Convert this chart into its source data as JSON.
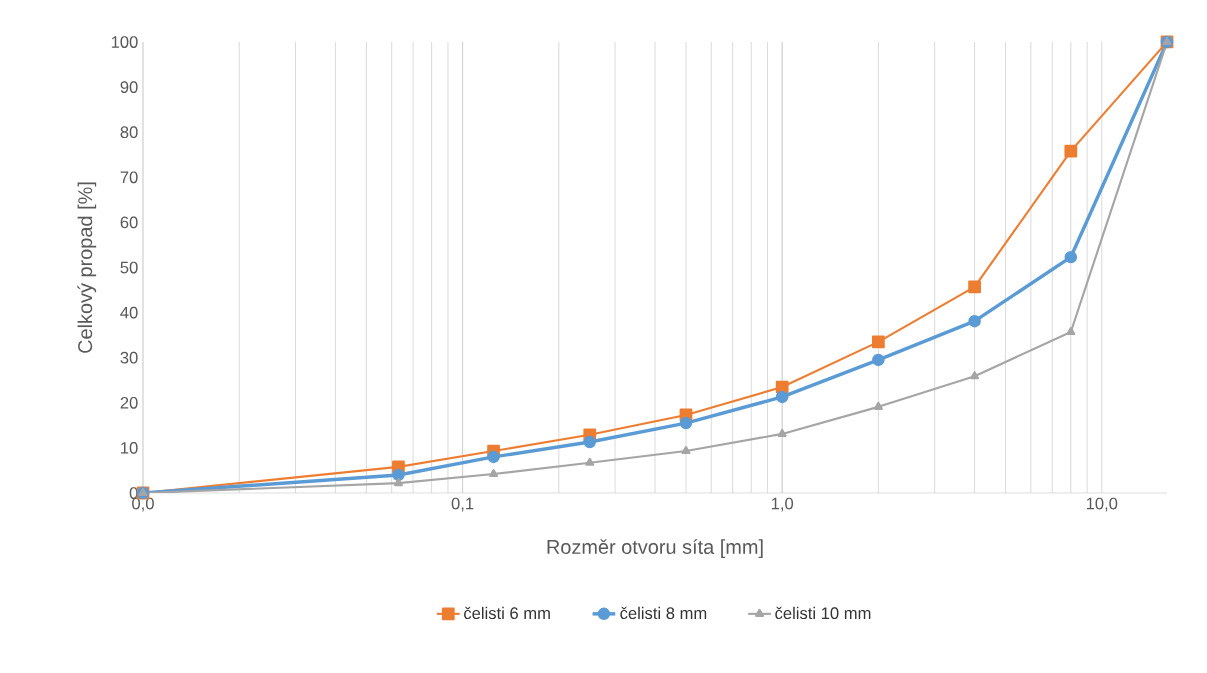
{
  "chart_data": {
    "type": "line",
    "xlabel": "Rozměr otvoru síta [mm]",
    "ylabel": "Celkový propad [%]",
    "x": [
      0.01,
      0.063,
      0.125,
      0.25,
      0.5,
      1,
      2,
      4,
      8,
      16
    ],
    "series": [
      {
        "name": "čelisti 6 mm",
        "color": "#ed7d31",
        "marker": "square",
        "values": [
          0,
          5.8,
          9.3,
          12.9,
          17.3,
          23.5,
          33.5,
          45.7,
          75.8,
          100
        ]
      },
      {
        "name": "čelisti 8 mm",
        "color": "#5b9bd5",
        "marker": "circle",
        "values": [
          0,
          4.0,
          8.0,
          11.3,
          15.5,
          21.3,
          29.5,
          38.1,
          52.3,
          100
        ]
      },
      {
        "name": "čelisti 10 mm",
        "color": "#a5a5a5",
        "marker": "triangle",
        "values": [
          0,
          2.2,
          4.2,
          6.7,
          9.3,
          13.1,
          19.1,
          25.9,
          35.7,
          100
        ]
      }
    ],
    "log": "x",
    "xlim": [
      0.01,
      16
    ],
    "xticks": [
      {
        "value": 0.01,
        "label": "0,0"
      },
      {
        "value": 0.1,
        "label": "0,1"
      },
      {
        "value": 1,
        "label": "1,0"
      },
      {
        "value": 10,
        "label": "10,0"
      }
    ],
    "ylim": [
      0,
      100
    ],
    "yticks": [
      0,
      10,
      20,
      30,
      40,
      50,
      60,
      70,
      80,
      90,
      100
    ],
    "grid": "x",
    "legend": "bottom",
    "line_style": "solid"
  }
}
